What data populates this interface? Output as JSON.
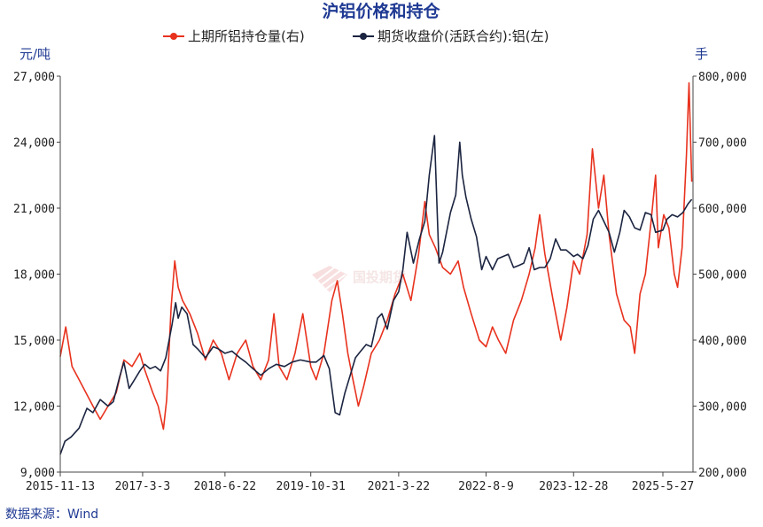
{
  "chart_data": {
    "type": "line",
    "title": "沪铝价格和持仓",
    "left_unit": "元/吨",
    "right_unit": "手",
    "source": "数据来源：Wind",
    "watermark": "国投期货",
    "ylim_left": [
      9000,
      27000
    ],
    "ylim_right": [
      200000,
      800000
    ],
    "yticks_left": [
      "9,000",
      "12,000",
      "15,000",
      "18,000",
      "21,000",
      "24,000",
      "27,000"
    ],
    "yticks_right": [
      "200,000",
      "300,000",
      "400,000",
      "500,000",
      "600,000",
      "700,000",
      "800,000"
    ],
    "xticks": [
      "2015-11-13",
      "2017-3-3",
      "2018-6-22",
      "2019-10-31",
      "2021-3-22",
      "2022-8-9",
      "2023-12-28",
      "2025-5-27"
    ],
    "grid": false,
    "legend_position": "top",
    "series": [
      {
        "name": "上期所铝持仓量(右)",
        "axis": "right",
        "color": "#e8321e",
        "points": [
          [
            "2015-11-13",
            375000
          ],
          [
            "2015-12-15",
            420000
          ],
          [
            "2016-01-20",
            360000
          ],
          [
            "2016-03-01",
            340000
          ],
          [
            "2016-04-10",
            320000
          ],
          [
            "2016-05-20",
            300000
          ],
          [
            "2016-07-01",
            280000
          ],
          [
            "2016-08-15",
            300000
          ],
          [
            "2016-10-01",
            320000
          ],
          [
            "2016-11-15",
            370000
          ],
          [
            "2017-01-01",
            360000
          ],
          [
            "2017-02-15",
            380000
          ],
          [
            "2017-03-15",
            355000
          ],
          [
            "2017-05-01",
            320000
          ],
          [
            "2017-06-01",
            300000
          ],
          [
            "2017-07-01",
            265000
          ],
          [
            "2017-07-20",
            310000
          ],
          [
            "2017-08-15",
            450000
          ],
          [
            "2017-09-05",
            520000
          ],
          [
            "2017-09-25",
            480000
          ],
          [
            "2017-10-20",
            460000
          ],
          [
            "2017-12-01",
            440000
          ],
          [
            "2018-01-15",
            410000
          ],
          [
            "2018-03-01",
            370000
          ],
          [
            "2018-04-15",
            400000
          ],
          [
            "2018-06-01",
            380000
          ],
          [
            "2018-07-15",
            340000
          ],
          [
            "2018-09-01",
            380000
          ],
          [
            "2018-10-20",
            400000
          ],
          [
            "2018-12-01",
            360000
          ],
          [
            "2019-01-15",
            340000
          ],
          [
            "2019-03-01",
            370000
          ],
          [
            "2019-04-01",
            440000
          ],
          [
            "2019-05-01",
            360000
          ],
          [
            "2019-06-15",
            340000
          ],
          [
            "2019-08-01",
            380000
          ],
          [
            "2019-09-15",
            440000
          ],
          [
            "2019-10-31",
            360000
          ],
          [
            "2019-12-01",
            340000
          ],
          [
            "2020-01-15",
            380000
          ],
          [
            "2020-03-01",
            460000
          ],
          [
            "2020-04-01",
            490000
          ],
          [
            "2020-05-01",
            440000
          ],
          [
            "2020-06-01",
            380000
          ],
          [
            "2020-07-01",
            340000
          ],
          [
            "2020-08-01",
            300000
          ],
          [
            "2020-09-01",
            330000
          ],
          [
            "2020-10-15",
            380000
          ],
          [
            "2020-12-01",
            400000
          ],
          [
            "2021-01-15",
            430000
          ],
          [
            "2021-03-01",
            470000
          ],
          [
            "2021-04-15",
            500000
          ],
          [
            "2021-06-01",
            460000
          ],
          [
            "2021-07-15",
            530000
          ],
          [
            "2021-08-20",
            610000
          ],
          [
            "2021-09-15",
            560000
          ],
          [
            "2021-10-20",
            540000
          ],
          [
            "2021-12-01",
            510000
          ],
          [
            "2022-01-15",
            500000
          ],
          [
            "2022-03-01",
            520000
          ],
          [
            "2022-04-01",
            480000
          ],
          [
            "2022-05-15",
            440000
          ],
          [
            "2022-07-01",
            400000
          ],
          [
            "2022-08-09",
            390000
          ],
          [
            "2022-09-15",
            420000
          ],
          [
            "2022-10-20",
            400000
          ],
          [
            "2022-12-01",
            380000
          ],
          [
            "2023-01-15",
            430000
          ],
          [
            "2023-03-01",
            460000
          ],
          [
            "2023-04-15",
            500000
          ],
          [
            "2023-05-20",
            540000
          ],
          [
            "2023-06-15",
            590000
          ],
          [
            "2023-07-15",
            530000
          ],
          [
            "2023-09-01",
            460000
          ],
          [
            "2023-10-15",
            400000
          ],
          [
            "2023-11-20",
            450000
          ],
          [
            "2023-12-28",
            520000
          ],
          [
            "2024-02-01",
            500000
          ],
          [
            "2024-03-15",
            560000
          ],
          [
            "2024-04-15",
            690000
          ],
          [
            "2024-05-20",
            600000
          ],
          [
            "2024-06-20",
            650000
          ],
          [
            "2024-07-20",
            560000
          ],
          [
            "2024-09-01",
            470000
          ],
          [
            "2024-10-15",
            430000
          ],
          [
            "2024-11-20",
            420000
          ],
          [
            "2024-12-15",
            380000
          ],
          [
            "2025-01-15",
            470000
          ],
          [
            "2025-02-15",
            500000
          ],
          [
            "2025-03-20",
            580000
          ],
          [
            "2025-04-15",
            650000
          ],
          [
            "2025-05-01",
            540000
          ],
          [
            "2025-06-01",
            590000
          ],
          [
            "2025-07-01",
            570000
          ],
          [
            "2025-08-01",
            500000
          ],
          [
            "2025-08-20",
            480000
          ],
          [
            "2025-09-15",
            540000
          ],
          [
            "2025-10-10",
            680000
          ],
          [
            "2025-10-25",
            790000
          ],
          [
            "2025-11-10",
            640000
          ]
        ]
      },
      {
        "name": "期货收盘价(活跃合约):铝(左)",
        "axis": "left",
        "color": "#1b2440",
        "points": [
          [
            "2015-11-13",
            9800
          ],
          [
            "2015-12-10",
            10400
          ],
          [
            "2016-01-15",
            10600
          ],
          [
            "2016-03-01",
            11000
          ],
          [
            "2016-04-15",
            11900
          ],
          [
            "2016-05-20",
            11700
          ],
          [
            "2016-07-01",
            12300
          ],
          [
            "2016-08-15",
            12000
          ],
          [
            "2016-09-15",
            12200
          ],
          [
            "2016-10-20",
            13300
          ],
          [
            "2016-11-15",
            14000
          ],
          [
            "2016-12-15",
            12800
          ],
          [
            "2017-01-15",
            13200
          ],
          [
            "2017-02-15",
            13600
          ],
          [
            "2017-03-15",
            13900
          ],
          [
            "2017-04-15",
            13700
          ],
          [
            "2017-05-15",
            13800
          ],
          [
            "2017-06-15",
            13600
          ],
          [
            "2017-07-15",
            14200
          ],
          [
            "2017-08-20",
            15700
          ],
          [
            "2017-09-10",
            16700
          ],
          [
            "2017-09-25",
            16000
          ],
          [
            "2017-10-15",
            16500
          ],
          [
            "2017-11-15",
            16200
          ],
          [
            "2017-12-20",
            14800
          ],
          [
            "2018-01-15",
            14600
          ],
          [
            "2018-03-01",
            14200
          ],
          [
            "2018-04-15",
            14700
          ],
          [
            "2018-05-15",
            14600
          ],
          [
            "2018-06-22",
            14400
          ],
          [
            "2018-08-01",
            14500
          ],
          [
            "2018-09-15",
            14200
          ],
          [
            "2018-10-20",
            14000
          ],
          [
            "2018-12-01",
            13700
          ],
          [
            "2019-01-15",
            13400
          ],
          [
            "2019-03-01",
            13700
          ],
          [
            "2019-04-15",
            13900
          ],
          [
            "2019-06-01",
            13800
          ],
          [
            "2019-07-15",
            14000
          ],
          [
            "2019-09-01",
            14100
          ],
          [
            "2019-10-31",
            14000
          ],
          [
            "2019-12-01",
            14000
          ],
          [
            "2020-01-15",
            14300
          ],
          [
            "2020-02-15",
            13700
          ],
          [
            "2020-03-20",
            11700
          ],
          [
            "2020-04-15",
            11600
          ],
          [
            "2020-05-15",
            12600
          ],
          [
            "2020-06-15",
            13400
          ],
          [
            "2020-07-15",
            14200
          ],
          [
            "2020-08-15",
            14500
          ],
          [
            "2020-09-15",
            14800
          ],
          [
            "2020-10-15",
            14700
          ],
          [
            "2020-11-20",
            16000
          ],
          [
            "2020-12-15",
            16200
          ],
          [
            "2021-01-15",
            15500
          ],
          [
            "2021-02-20",
            16800
          ],
          [
            "2021-03-22",
            17200
          ],
          [
            "2021-04-15",
            18200
          ],
          [
            "2021-05-10",
            19900
          ],
          [
            "2021-06-15",
            18500
          ],
          [
            "2021-07-20",
            19600
          ],
          [
            "2021-08-20",
            20400
          ],
          [
            "2021-09-15",
            22500
          ],
          [
            "2021-10-15",
            24300
          ],
          [
            "2021-11-10",
            18500
          ],
          [
            "2021-12-01",
            19000
          ],
          [
            "2022-01-15",
            20800
          ],
          [
            "2022-02-15",
            21600
          ],
          [
            "2022-03-10",
            24000
          ],
          [
            "2022-03-25",
            22500
          ],
          [
            "2022-04-15",
            21500
          ],
          [
            "2022-05-15",
            20500
          ],
          [
            "2022-06-15",
            19700
          ],
          [
            "2022-07-15",
            18200
          ],
          [
            "2022-08-09",
            18800
          ],
          [
            "2022-09-15",
            18200
          ],
          [
            "2022-10-15",
            18700
          ],
          [
            "2022-11-15",
            18800
          ],
          [
            "2022-12-15",
            18900
          ],
          [
            "2023-01-15",
            18300
          ],
          [
            "2023-02-15",
            18400
          ],
          [
            "2023-03-15",
            18500
          ],
          [
            "2023-04-15",
            19200
          ],
          [
            "2023-05-15",
            18200
          ],
          [
            "2023-06-15",
            18300
          ],
          [
            "2023-07-15",
            18300
          ],
          [
            "2023-08-15",
            18700
          ],
          [
            "2023-09-15",
            19600
          ],
          [
            "2023-10-15",
            19100
          ],
          [
            "2023-11-15",
            19100
          ],
          [
            "2023-12-28",
            18800
          ],
          [
            "2024-01-20",
            18900
          ],
          [
            "2024-02-20",
            18700
          ],
          [
            "2024-03-20",
            19300
          ],
          [
            "2024-04-20",
            20500
          ],
          [
            "2024-05-20",
            20900
          ],
          [
            "2024-06-20",
            20400
          ],
          [
            "2024-07-20",
            19900
          ],
          [
            "2024-08-20",
            19000
          ],
          [
            "2024-09-20",
            19900
          ],
          [
            "2024-10-15",
            20900
          ],
          [
            "2024-11-15",
            20600
          ],
          [
            "2024-12-15",
            20100
          ],
          [
            "2025-01-15",
            20000
          ],
          [
            "2025-02-15",
            20800
          ],
          [
            "2025-03-20",
            20700
          ],
          [
            "2025-04-15",
            19900
          ],
          [
            "2025-05-27",
            20000
          ],
          [
            "2025-06-20",
            20500
          ],
          [
            "2025-07-20",
            20700
          ],
          [
            "2025-08-20",
            20600
          ],
          [
            "2025-09-20",
            20800
          ],
          [
            "2025-10-20",
            21200
          ],
          [
            "2025-11-10",
            21400
          ]
        ]
      }
    ]
  }
}
